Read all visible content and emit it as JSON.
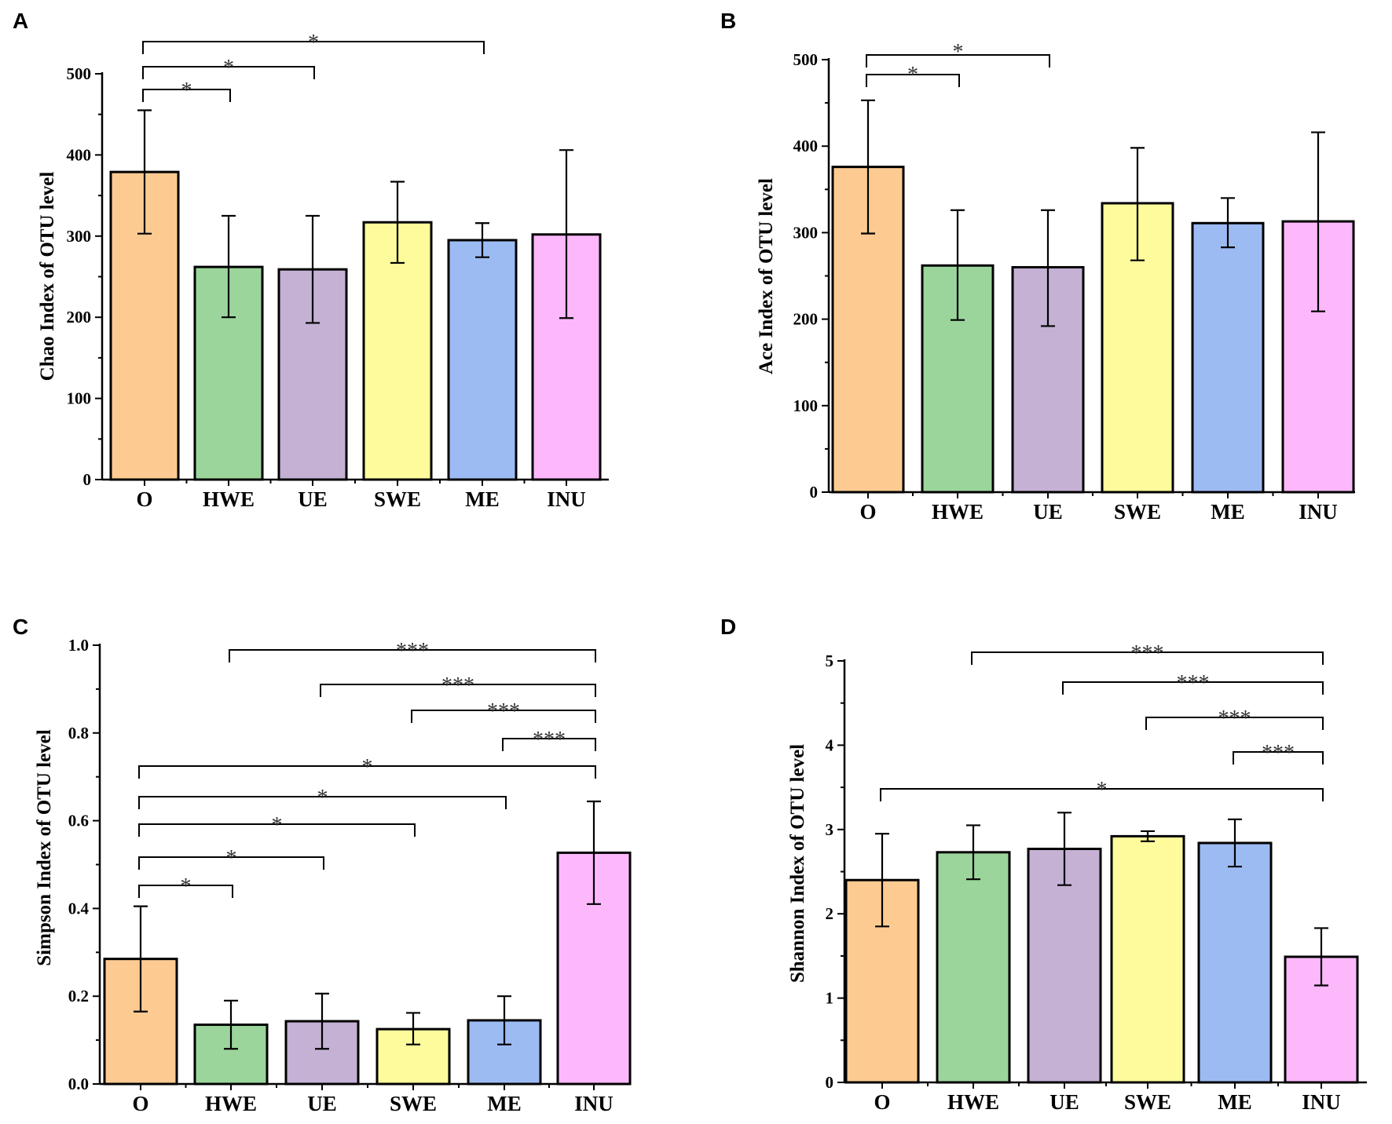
{
  "colors": {
    "O": "#fdcb92",
    "HWE": "#9bd59b",
    "UE": "#c4b1d4",
    "SWE": "#fdfb9b",
    "ME": "#9dbbf3",
    "INU": "#fcb8fb"
  },
  "chart_data": [
    {
      "panel": "A",
      "type": "bar",
      "ylabel": "Chao Index of OTU level",
      "categories": [
        "O",
        "HWE",
        "UE",
        "SWE",
        "ME",
        "INU"
      ],
      "values": [
        379,
        262,
        259,
        317,
        295,
        302
      ],
      "errors": [
        [
          303,
          455
        ],
        [
          200,
          325
        ],
        [
          193,
          325
        ],
        [
          267,
          367
        ],
        [
          274,
          316
        ],
        [
          199,
          406
        ]
      ],
      "ylim": [
        0,
        500
      ],
      "yticks": [
        "0",
        "100",
        "200",
        "300",
        "400",
        "500"
      ],
      "significance": [
        {
          "from": "O",
          "to": "HWE",
          "label": "*"
        },
        {
          "from": "O",
          "to": "UE",
          "label": "*"
        },
        {
          "from": "O",
          "to": "ME",
          "label": "*"
        }
      ]
    },
    {
      "panel": "B",
      "type": "bar",
      "ylabel": "Ace Index of OTU level",
      "categories": [
        "O",
        "HWE",
        "UE",
        "SWE",
        "ME",
        "INU"
      ],
      "values": [
        376,
        262,
        260,
        334,
        311,
        313
      ],
      "errors": [
        [
          299,
          453
        ],
        [
          199,
          326
        ],
        [
          192,
          326
        ],
        [
          268,
          398
        ],
        [
          283,
          340
        ],
        [
          209,
          416
        ]
      ],
      "ylim": [
        0,
        500
      ],
      "yticks": [
        "0",
        "100",
        "200",
        "300",
        "400",
        "500"
      ],
      "significance": [
        {
          "from": "O",
          "to": "HWE",
          "label": "*"
        },
        {
          "from": "O",
          "to": "UE",
          "label": "*"
        }
      ]
    },
    {
      "panel": "C",
      "type": "bar",
      "ylabel": "Simpson Index of OTU level",
      "categories": [
        "O",
        "HWE",
        "UE",
        "SWE",
        "ME",
        "INU"
      ],
      "values": [
        0.285,
        0.135,
        0.143,
        0.125,
        0.145,
        0.527
      ],
      "errors": [
        [
          0.165,
          0.405
        ],
        [
          0.08,
          0.19
        ],
        [
          0.08,
          0.206
        ],
        [
          0.09,
          0.162
        ],
        [
          0.09,
          0.2
        ],
        [
          0.41,
          0.644
        ]
      ],
      "ylim": [
        0,
        1.0
      ],
      "yticks": [
        "0.0",
        "0.2",
        "0.4",
        "0.6",
        "0.8",
        "1.0"
      ],
      "significance": [
        {
          "from": "HWE",
          "to": "INU",
          "label": "***"
        },
        {
          "from": "UE",
          "to": "INU",
          "label": "***"
        },
        {
          "from": "SWE",
          "to": "INU",
          "label": "***"
        },
        {
          "from": "ME",
          "to": "INU",
          "label": "***"
        },
        {
          "from": "O",
          "to": "INU",
          "label": "*"
        },
        {
          "from": "O",
          "to": "ME",
          "label": "*"
        },
        {
          "from": "O",
          "to": "SWE",
          "label": "*"
        },
        {
          "from": "O",
          "to": "UE",
          "label": "*"
        },
        {
          "from": "O",
          "to": "HWE",
          "label": "*"
        }
      ]
    },
    {
      "panel": "D",
      "type": "bar",
      "ylabel": "Shannon Index of OTU level",
      "categories": [
        "O",
        "HWE",
        "UE",
        "SWE",
        "ME",
        "INU"
      ],
      "values": [
        2.4,
        2.73,
        2.77,
        2.92,
        2.84,
        1.49
      ],
      "errors": [
        [
          1.85,
          2.95
        ],
        [
          2.41,
          3.05
        ],
        [
          2.34,
          3.2
        ],
        [
          2.86,
          2.98
        ],
        [
          2.56,
          3.12
        ],
        [
          1.15,
          1.83
        ]
      ],
      "ylim": [
        0,
        5
      ],
      "yticks": [
        "0",
        "1",
        "2",
        "3",
        "4",
        "5"
      ],
      "significance": [
        {
          "from": "HWE",
          "to": "INU",
          "label": "***"
        },
        {
          "from": "UE",
          "to": "INU",
          "label": "***"
        },
        {
          "from": "SWE",
          "to": "INU",
          "label": "***"
        },
        {
          "from": "ME",
          "to": "INU",
          "label": "***"
        },
        {
          "from": "O",
          "to": "INU",
          "label": "*"
        }
      ]
    }
  ]
}
